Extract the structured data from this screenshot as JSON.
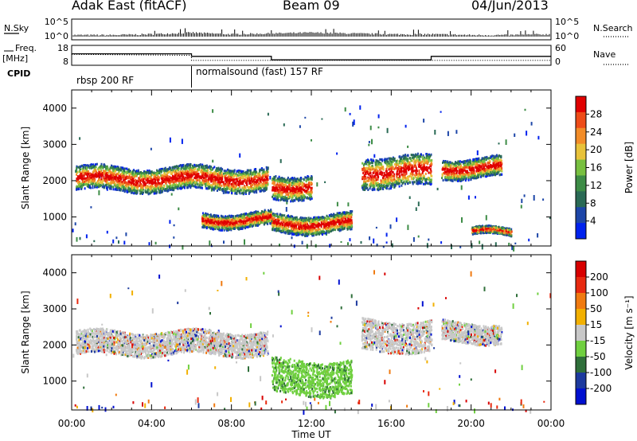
{
  "header": {
    "station": "Adak East (fitACF)",
    "beam": "Beam 09",
    "date": "04/Jun/2013"
  },
  "left_labels": {
    "nsky": "N.Sky",
    "freq": "Freq.",
    "freq_unit": "[MHz]",
    "cpid": "CPID"
  },
  "right_labels": {
    "nsearch": "N.Search",
    "nave": "Nave"
  },
  "cpid_segments": [
    "rbsp 200 RF",
    "normalsound (fast) 157 RF"
  ],
  "colors": {
    "power": [
      "#0022ee",
      "#1d46a8",
      "#2a6a55",
      "#3d8c46",
      "#78c040",
      "#e8c23a",
      "#f28c28",
      "#ee4c18",
      "#e00000"
    ],
    "velocity": [
      "#0010d0",
      "#1d3a9e",
      "#2f6f3a",
      "#70d040",
      "#c8c8c8",
      "#f2b000",
      "#f07a10",
      "#e82a10",
      "#d80000"
    ]
  },
  "chart_data": [
    {
      "type": "line",
      "title": "",
      "xlabel": "",
      "ylabel": "N.Sky",
      "y2label": "N.Search",
      "yticks": [
        "10^5",
        "10^0"
      ],
      "y2ticks": [
        "10^5",
        "10^0"
      ],
      "xlim": [
        0,
        24
      ],
      "x": [
        0,
        2,
        4,
        6,
        8,
        10,
        12,
        14,
        16,
        18,
        20,
        22,
        24
      ],
      "series": [
        {
          "values": [
            1,
            1,
            2,
            4,
            2,
            3,
            4,
            3,
            2,
            2,
            1,
            1,
            2
          ]
        }
      ]
    },
    {
      "type": "line",
      "xlabel": "",
      "ylabel": "Freq. [MHz]",
      "y2label": "Nave",
      "yticks": [
        "18",
        "8"
      ],
      "y2ticks": [
        "60",
        "0"
      ],
      "x": [
        0,
        6,
        6,
        10,
        10,
        18,
        18,
        24
      ],
      "series": [
        {
          "values": [
            14,
            14,
            12.3,
            12.3,
            10,
            10,
            12.3,
            12.3
          ]
        },
        {
          "values": [
            34,
            30,
            10,
            10,
            10,
            10,
            10,
            10
          ]
        }
      ]
    },
    {
      "type": "heatmap",
      "title": "",
      "xlabel": "",
      "ylabel": "Slant Range [km]",
      "yticks": [
        "4000",
        "3000",
        "2000",
        "1000"
      ],
      "ylim": [
        200,
        4500
      ],
      "xlim": [
        0,
        24
      ],
      "colorbar_label": "Power [dB]",
      "colorbar_ticks": [
        "28",
        "24",
        "20",
        "16",
        "12",
        "8",
        "4"
      ],
      "bands": [
        {
          "t0": 0.2,
          "t1": 9.8,
          "r0": 1750,
          "r1": 2400
        },
        {
          "t0": 6.5,
          "t1": 10.0,
          "r0": 750,
          "r1": 1150
        },
        {
          "t0": 10.0,
          "t1": 14.0,
          "r0": 600,
          "r1": 1100
        },
        {
          "t0": 10.0,
          "t1": 12.0,
          "r0": 1550,
          "r1": 2200
        },
        {
          "t0": 14.5,
          "t1": 18.0,
          "r0": 1850,
          "r1": 2700
        },
        {
          "t0": 18.5,
          "t1": 21.5,
          "r0": 2100,
          "r1": 2650
        },
        {
          "t0": 20.0,
          "t1": 22.0,
          "r0": 500,
          "r1": 700
        }
      ]
    },
    {
      "type": "heatmap",
      "title": "",
      "xlabel": "Time UT",
      "ylabel": "Slant Range [km]",
      "xticks": [
        "00:00",
        "04:00",
        "08:00",
        "12:00",
        "16:00",
        "20:00",
        "00:00"
      ],
      "yticks": [
        "4000",
        "3000",
        "2000",
        "1000"
      ],
      "ylim": [
        200,
        4500
      ],
      "xlim": [
        0,
        24
      ],
      "colorbar_label": "Velocity [m s⁻¹]",
      "colorbar_ticks": [
        "200",
        "100",
        "50",
        "15",
        "-15",
        "-50",
        "-100",
        "-200"
      ],
      "bands": [
        {
          "t0": 0.2,
          "t1": 9.8,
          "r0": 1750,
          "r1": 2400
        },
        {
          "t0": 10.0,
          "t1": 14.0,
          "r0": 650,
          "r1": 1600
        },
        {
          "t0": 14.5,
          "t1": 18.0,
          "r0": 1850,
          "r1": 2700
        },
        {
          "t0": 18.5,
          "t1": 21.5,
          "r0": 2100,
          "r1": 2650
        }
      ]
    }
  ]
}
